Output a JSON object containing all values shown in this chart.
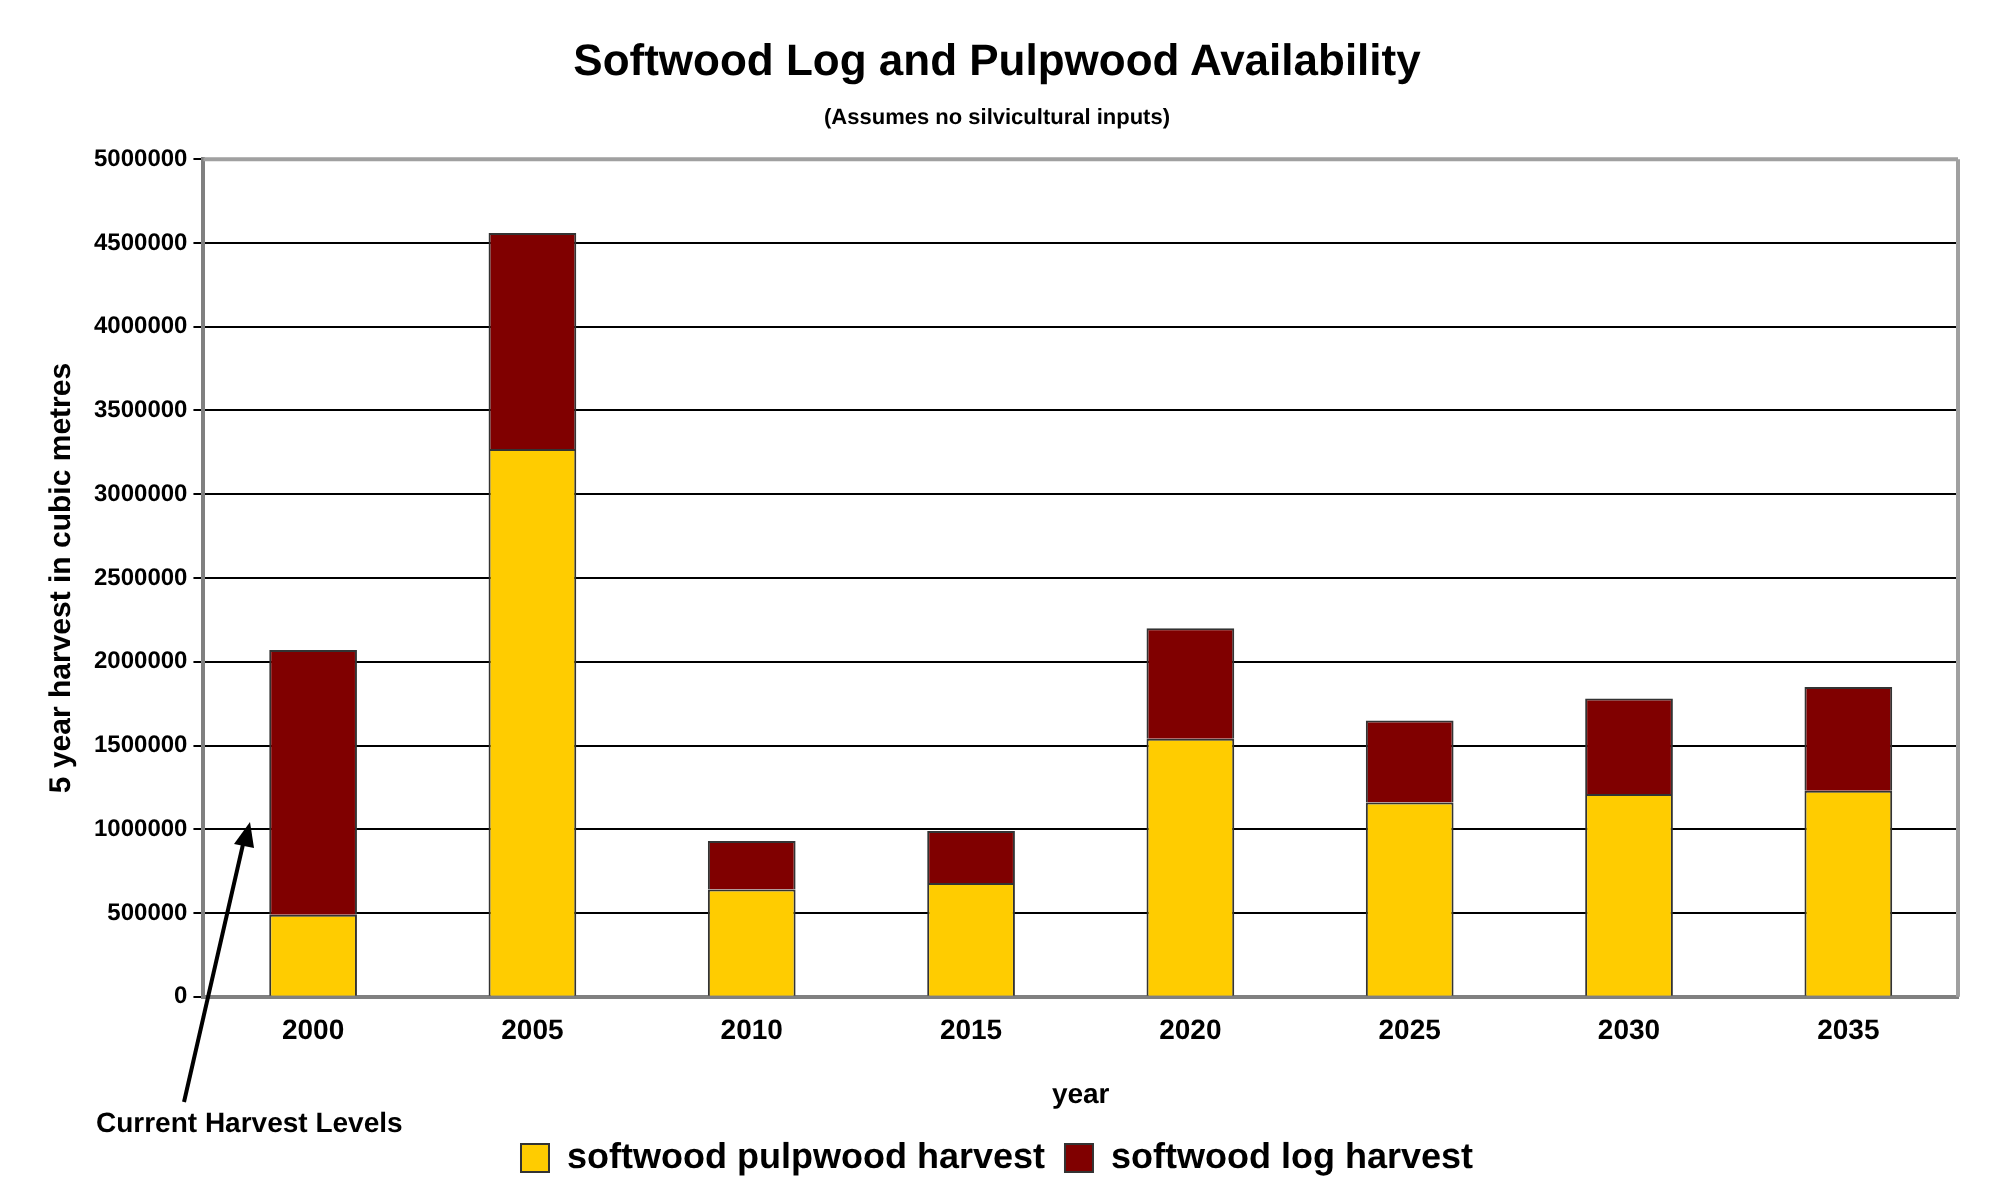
{
  "chart_data": {
    "type": "bar",
    "title": "Softwood Log and Pulpwood Availability",
    "subtitle": "(Assumes no silvicultural inputs)",
    "xlabel": "year",
    "ylabel": "5 year harvest in cubic metres",
    "categories": [
      "2000",
      "2005",
      "2010",
      "2015",
      "2020",
      "2025",
      "2030",
      "2035"
    ],
    "series": [
      {
        "name": "softwood pulpwood harvest",
        "color": "#ffcc00",
        "values": [
          490000,
          3270000,
          640000,
          680000,
          1540000,
          1160000,
          1210000,
          1230000
        ]
      },
      {
        "name": "softwood log harvest",
        "color": "#800000",
        "values": [
          1580000,
          1290000,
          290000,
          310000,
          660000,
          490000,
          570000,
          620000
        ]
      }
    ],
    "stacked": true,
    "ylim": [
      0,
      5000000
    ],
    "yticks": [
      0,
      500000,
      1000000,
      1500000,
      2000000,
      2500000,
      3000000,
      3500000,
      4000000,
      4500000,
      5000000
    ],
    "grid": "y",
    "legend": "bottom",
    "annotations": [
      "Current Harvest Levels"
    ]
  }
}
